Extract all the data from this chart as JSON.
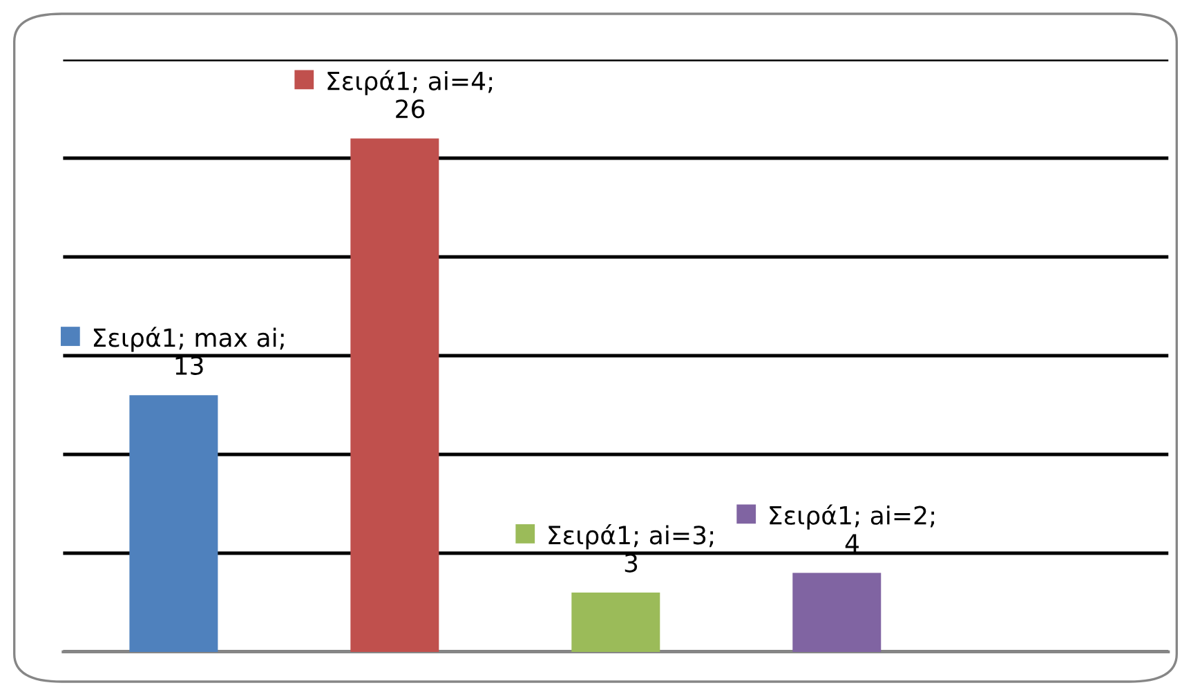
{
  "chart_data": {
    "type": "bar",
    "categories": [
      null,
      null,
      null,
      null
    ],
    "values": [
      13,
      26,
      3,
      4
    ],
    "colors": [
      "#4f81bd",
      "#c0504d",
      "#9bbb59",
      "#8064a2"
    ],
    "value_labels": [
      "Σειρά1; max ai; 13",
      "Σειρά1; ai=4; 26",
      "Σειρά1; ai=3; 3",
      "Σειρά1; ai=2; 4"
    ],
    "ylim": [
      0,
      30
    ],
    "yticks": [
      0,
      5,
      10,
      15,
      20,
      25,
      30
    ],
    "tick_labels": false,
    "grid": "y",
    "legend": false
  }
}
